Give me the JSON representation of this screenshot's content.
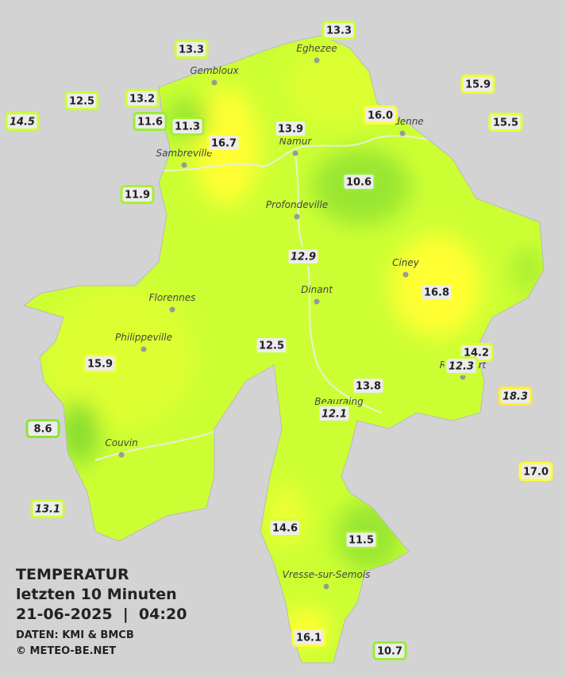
{
  "map": {
    "legend": {
      "title": "TEMPERATUR",
      "subtitle": "letzten 10 Minuten",
      "datetime": "21-06-2025  |  04:20",
      "source": "DATEN: KMI & BMCB",
      "copyright": "© METEO-BE.NET"
    },
    "background": "#d3d3d3",
    "land_color": "#ccff33",
    "cities": [
      "Eghezee",
      "Gembloux",
      "Andenne",
      "Namur",
      "Sambreville",
      "Profondeville",
      "Ciney",
      "Florennes",
      "Dinant",
      "Philippeville",
      "Rochefort",
      "Beauraing",
      "Couvin",
      "Vresse-sur-Semois"
    ],
    "stations": [
      {
        "label": "13.3",
        "color": "#ccff33",
        "italic": false
      },
      {
        "label": "13.3",
        "color": "#ccff33",
        "italic": false
      },
      {
        "label": "12.5",
        "color": "#ccff33",
        "italic": false
      },
      {
        "label": "13.2",
        "color": "#ccff33",
        "italic": false
      },
      {
        "label": "14.5",
        "color": "#ccff33",
        "italic": true
      },
      {
        "label": "11.6",
        "color": "#99ee33",
        "italic": false
      },
      {
        "label": "11.3",
        "color": "#a8f033",
        "italic": false
      },
      {
        "label": "16.7",
        "color": "#ffff33",
        "italic": false
      },
      {
        "label": "13.9",
        "color": "#ccff33",
        "italic": false
      },
      {
        "label": "16.0",
        "color": "#ffff33",
        "italic": false
      },
      {
        "label": "15.9",
        "color": "#eeff33",
        "italic": false
      },
      {
        "label": "15.5",
        "color": "#e6ff33",
        "italic": false
      },
      {
        "label": "10.6",
        "color": "#99ee33",
        "italic": false
      },
      {
        "label": "11.9",
        "color": "#a8f033",
        "italic": false
      },
      {
        "label": "12.9",
        "color": "#ccff33",
        "italic": true
      },
      {
        "label": "16.8",
        "color": "#ffff33",
        "italic": false
      },
      {
        "label": "12.5",
        "color": "#ccff33",
        "italic": false
      },
      {
        "label": "15.9",
        "color": "#eeff33",
        "italic": false
      },
      {
        "label": "14.2",
        "color": "#ddff33",
        "italic": false
      },
      {
        "label": "12.3",
        "color": "#ccff33",
        "italic": true
      },
      {
        "label": "13.8",
        "color": "#ccff33",
        "italic": false
      },
      {
        "label": "18.3",
        "color": "#ffee33",
        "italic": true
      },
      {
        "label": "12.1",
        "color": "#ccff33",
        "italic": true
      },
      {
        "label": "8.6",
        "color": "#88e633",
        "italic": false
      },
      {
        "label": "17.0",
        "color": "#ffff33",
        "italic": false
      },
      {
        "label": "13.1",
        "color": "#ccff33",
        "italic": true
      },
      {
        "label": "14.6",
        "color": "#ddff33",
        "italic": false
      },
      {
        "label": "11.5",
        "color": "#a8f033",
        "italic": false
      },
      {
        "label": "16.1",
        "color": "#ffff33",
        "italic": false
      },
      {
        "label": "10.7",
        "color": "#99ee33",
        "italic": false
      }
    ]
  }
}
